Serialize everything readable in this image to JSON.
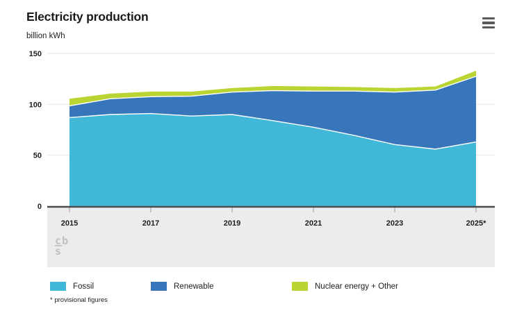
{
  "header": {
    "title": "Electricity production",
    "unit": "billion kWh"
  },
  "toolbar": {
    "menu_icon": "hamburger-menu-icon"
  },
  "chart_data": {
    "type": "area",
    "stacked": true,
    "title": "Electricity production",
    "ylabel": "billion kWh",
    "xlabel": "",
    "grid": "horizontal",
    "legend_position": "bottom",
    "x": [
      2015,
      2016,
      2017,
      2018,
      2019,
      2020,
      2021,
      2022,
      2023,
      2024,
      2025
    ],
    "series": [
      {
        "name": "Fossil",
        "color": "#42b8d8",
        "values": [
          87,
          90,
          91,
          88.5,
          90,
          84,
          77.5,
          69.5,
          60.5,
          56,
          63
        ]
      },
      {
        "name": "Renewable",
        "color": "#3776bb",
        "values": [
          11.5,
          15.5,
          16.5,
          19.5,
          22,
          29.5,
          35.5,
          43.5,
          51.5,
          58,
          64.5
        ]
      },
      {
        "name": "Nuclear energy + Other",
        "color": "#bad433",
        "values": [
          7,
          5,
          5,
          4.5,
          4,
          4.5,
          4.5,
          4,
          4,
          3.5,
          5.5
        ]
      }
    ],
    "totals": [
      105.5,
      110.5,
      112.5,
      112.5,
      116,
      118,
      117.5,
      117,
      116,
      117.5,
      133
    ],
    "ylim": [
      0,
      150
    ],
    "y_ticks": [
      0,
      50,
      100,
      150
    ],
    "x_ticks": [
      2015,
      2017,
      2019,
      2021,
      2023,
      2025
    ],
    "x_tick_labels": [
      "2015",
      "2017",
      "2019",
      "2021",
      "2023",
      "2025*"
    ],
    "colors": {
      "grid": "#e4e4e4",
      "axis": "#4c4c4c",
      "band": "#ececec",
      "tick": "#9b9b9b",
      "separator": "#ffffff"
    }
  },
  "footnote": "* provisional figures",
  "watermark": {
    "icon": "cbs-logo",
    "top": "cb",
    "bottom": "s"
  }
}
